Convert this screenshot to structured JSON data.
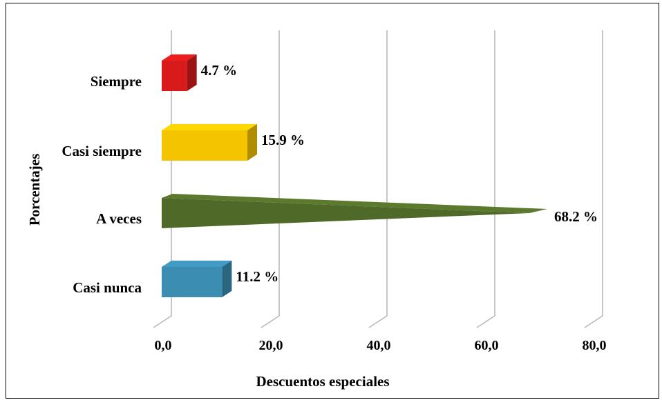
{
  "chart_data": {
    "type": "bar",
    "orientation": "horizontal",
    "categories": [
      "Casi nunca",
      "A veces",
      "Casi siempre",
      "Siempre"
    ],
    "values": [
      11.2,
      68.2,
      15.9,
      4.7
    ],
    "data_labels": [
      "11.2 %",
      "68.2 %",
      "15.9 %",
      "4.7 %"
    ],
    "colors": [
      "#3b8db2",
      "#4f6a28",
      "#f5c400",
      "#d81a1a"
    ],
    "xlabel": "Descuentos especiales",
    "ylabel": "Porcentajes",
    "xlim": [
      0,
      80
    ],
    "xticks": [
      "0,0",
      "20,0",
      "40,0",
      "60,0",
      "80,0"
    ],
    "grid": true,
    "legend": "none"
  }
}
